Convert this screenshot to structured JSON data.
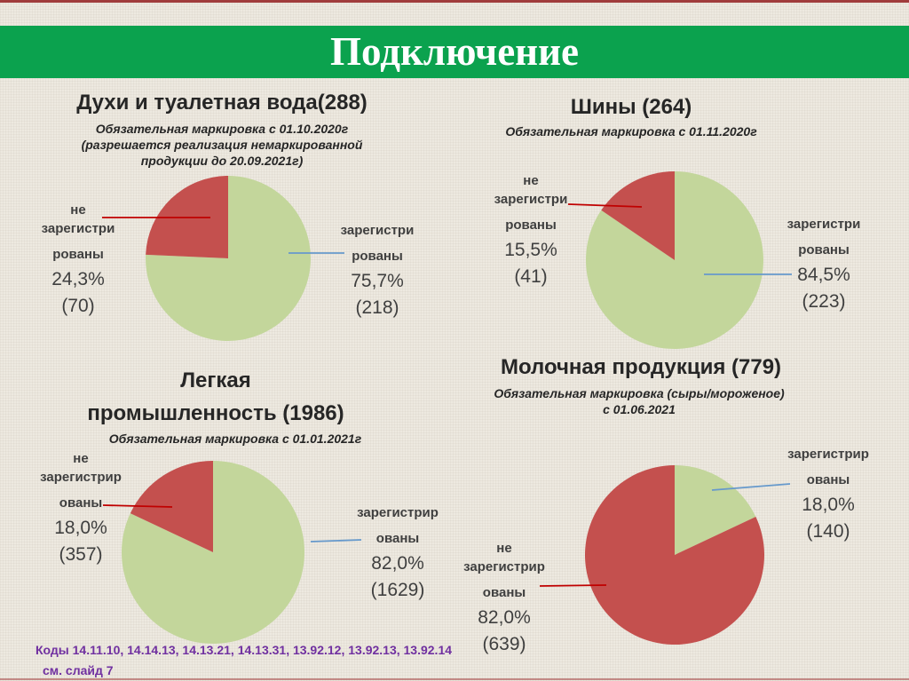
{
  "slide": {
    "title": "Подключение",
    "footer_codes": "Коды 14.11.10, 14.14.13, 14.13.21, 14.13.31, 13.92.12, 13.92.13, 13.92.14",
    "footer_see": "см. слайд 7"
  },
  "colors": {
    "background": "#EDE9E0",
    "banner_green": "#0BA24E",
    "top_bar_red": "#A03C3C",
    "pie_green": "#C3D69B",
    "pie_red": "#C4504E",
    "leader_red": "#C00000",
    "leader_blue": "#6699CC",
    "footer_purple": "#7030A0",
    "label_text": "#3F3F3F"
  },
  "chart_data": [
    {
      "type": "pie",
      "title": "Духи и туалетная вода(288)",
      "title_lines": [
        "Духи и туалетная вода(288)"
      ],
      "subtitle_lines": [
        "Обязательная маркировка с 01.10.2020г",
        "(разрешается реализация немаркированной",
        "продукции до 20.09.2021г)"
      ],
      "total": 288,
      "legend_position": "callout-labels",
      "slices": [
        {
          "name": "зарегистрированы",
          "value": 75.7,
          "count": 218,
          "color_key": "pie_green",
          "label_lines": [
            "зарегистри",
            "рованы"
          ],
          "percent_label": "75,7%",
          "count_label": "(218)"
        },
        {
          "name": "не зарегистрированы",
          "value": 24.3,
          "count": 70,
          "color_key": "pie_red",
          "label_lines": [
            "не",
            "зарегистри",
            "рованы"
          ],
          "percent_label": "24,3%",
          "count_label": "(70)"
        }
      ]
    },
    {
      "type": "pie",
      "title": "Шины (264)",
      "title_lines": [
        "Шины (264)"
      ],
      "subtitle_lines": [
        "Обязательная маркировка с 01.11.2020г"
      ],
      "total": 264,
      "legend_position": "callout-labels",
      "slices": [
        {
          "name": "зарегистрированы",
          "value": 84.5,
          "count": 223,
          "color_key": "pie_green",
          "label_lines": [
            "зарегистри",
            "рованы"
          ],
          "percent_label": "84,5%",
          "count_label": "(223)"
        },
        {
          "name": "не зарегистрированы",
          "value": 15.5,
          "count": 41,
          "color_key": "pie_red",
          "label_lines": [
            "не",
            "зарегистри",
            "рованы"
          ],
          "percent_label": "15,5%",
          "count_label": "(41)"
        }
      ]
    },
    {
      "type": "pie",
      "title": "Легкая промышленность (1986)",
      "title_lines": [
        "Легкая",
        "промышленность (1986)"
      ],
      "subtitle_lines": [
        "Обязательная маркировка с 01.01.2021г"
      ],
      "total": 1986,
      "legend_position": "callout-labels",
      "slices": [
        {
          "name": "зарегистрированы",
          "value": 82.0,
          "count": 1629,
          "color_key": "pie_green",
          "label_lines": [
            "зарегистрир",
            "ованы"
          ],
          "percent_label": "82,0%",
          "count_label": "(1629)"
        },
        {
          "name": "не зарегистрированы",
          "value": 18.0,
          "count": 357,
          "color_key": "pie_red",
          "label_lines": [
            "не",
            "зарегистрир",
            "ованы"
          ],
          "percent_label": "18,0%",
          "count_label": "(357)"
        }
      ]
    },
    {
      "type": "pie",
      "title": "Молочная продукция (779)",
      "title_lines": [
        "Молочная продукция (779)"
      ],
      "subtitle_lines": [
        "Обязательная маркировка (сыры/мороженое)",
        "с 01.06.2021"
      ],
      "total": 779,
      "legend_position": "callout-labels",
      "slices": [
        {
          "name": "зарегистрированы",
          "value": 18.0,
          "count": 140,
          "color_key": "pie_green",
          "label_lines": [
            "зарегистрир",
            "ованы"
          ],
          "percent_label": "18,0%",
          "count_label": "(140)"
        },
        {
          "name": "не зарегистрированы",
          "value": 82.0,
          "count": 639,
          "color_key": "pie_red",
          "label_lines": [
            "не",
            "зарегистрир",
            "ованы"
          ],
          "percent_label": "82,0%",
          "count_label": "(639)"
        }
      ]
    }
  ]
}
